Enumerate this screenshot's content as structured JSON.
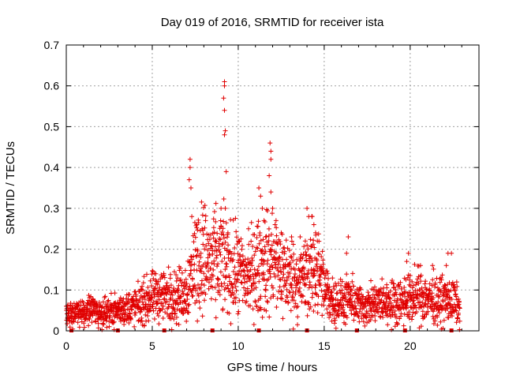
{
  "chart_data": {
    "type": "scatter",
    "title": "Day 019 of 2016, SRMTID for receiver ista",
    "xlabel": "GPS time / hours",
    "ylabel": "SRMTID / TECUs",
    "xlim": [
      0,
      24
    ],
    "ylim": [
      0,
      0.7
    ],
    "xticks": [
      0,
      5,
      10,
      15,
      20
    ],
    "xtick_labels": [
      "0",
      "5",
      "10",
      "15",
      "20"
    ],
    "yticks": [
      0,
      0.1,
      0.2,
      0.3,
      0.4,
      0.5,
      0.6,
      0.7
    ],
    "ytick_labels": [
      "0",
      "0.1",
      "0.2",
      "0.3",
      "0.4",
      "0.5",
      "0.6",
      "0.7"
    ],
    "grid": true,
    "marker": "+",
    "color": "#e00000",
    "series": [
      {
        "name": "SRMTID",
        "profile": [
          [
            0.0,
            0.04
          ],
          [
            0.5,
            0.045
          ],
          [
            1.0,
            0.045
          ],
          [
            1.5,
            0.05
          ],
          [
            2.0,
            0.045
          ],
          [
            2.5,
            0.05
          ],
          [
            3.0,
            0.05
          ],
          [
            3.5,
            0.055
          ],
          [
            4.0,
            0.06
          ],
          [
            4.5,
            0.07
          ],
          [
            5.0,
            0.08
          ],
          [
            5.5,
            0.09
          ],
          [
            6.0,
            0.085
          ],
          [
            6.5,
            0.085
          ],
          [
            7.0,
            0.1
          ],
          [
            7.5,
            0.17
          ],
          [
            8.0,
            0.18
          ],
          [
            8.5,
            0.16
          ],
          [
            9.0,
            0.17
          ],
          [
            9.5,
            0.15
          ],
          [
            10.0,
            0.14
          ],
          [
            10.5,
            0.13
          ],
          [
            11.0,
            0.15
          ],
          [
            11.5,
            0.16
          ],
          [
            12.0,
            0.17
          ],
          [
            12.5,
            0.15
          ],
          [
            13.0,
            0.13
          ],
          [
            13.5,
            0.12
          ],
          [
            14.0,
            0.13
          ],
          [
            14.5,
            0.16
          ],
          [
            15.0,
            0.1
          ],
          [
            15.5,
            0.075
          ],
          [
            16.0,
            0.07
          ],
          [
            16.5,
            0.075
          ],
          [
            17.0,
            0.065
          ],
          [
            17.5,
            0.06
          ],
          [
            18.0,
            0.065
          ],
          [
            18.5,
            0.07
          ],
          [
            19.0,
            0.07
          ],
          [
            19.5,
            0.075
          ],
          [
            20.0,
            0.08
          ],
          [
            20.5,
            0.085
          ],
          [
            21.0,
            0.08
          ],
          [
            21.5,
            0.075
          ],
          [
            22.0,
            0.075
          ],
          [
            22.5,
            0.07
          ],
          [
            22.9,
            0.06
          ]
        ],
        "spikes": [
          [
            7.2,
            0.42
          ],
          [
            7.2,
            0.4
          ],
          [
            7.15,
            0.37
          ],
          [
            7.25,
            0.35
          ],
          [
            7.3,
            0.28
          ],
          [
            7.6,
            0.26
          ],
          [
            7.9,
            0.25
          ],
          [
            8.1,
            0.27
          ],
          [
            8.7,
            0.22
          ],
          [
            9.0,
            0.3
          ],
          [
            9.2,
            0.61
          ],
          [
            9.2,
            0.6
          ],
          [
            9.15,
            0.57
          ],
          [
            9.2,
            0.54
          ],
          [
            9.25,
            0.49
          ],
          [
            9.2,
            0.48
          ],
          [
            9.3,
            0.39
          ],
          [
            9.25,
            0.3
          ],
          [
            9.4,
            0.24
          ],
          [
            10.0,
            0.22
          ],
          [
            10.6,
            0.25
          ],
          [
            11.2,
            0.35
          ],
          [
            11.3,
            0.33
          ],
          [
            11.4,
            0.3
          ],
          [
            11.5,
            0.27
          ],
          [
            11.6,
            0.23
          ],
          [
            11.85,
            0.46
          ],
          [
            11.9,
            0.44
          ],
          [
            11.9,
            0.42
          ],
          [
            11.8,
            0.38
          ],
          [
            11.9,
            0.34
          ],
          [
            12.0,
            0.3
          ],
          [
            12.2,
            0.27
          ],
          [
            12.5,
            0.24
          ],
          [
            13.1,
            0.23
          ],
          [
            13.6,
            0.23
          ],
          [
            13.9,
            0.22
          ],
          [
            14.0,
            0.3
          ],
          [
            14.1,
            0.28
          ],
          [
            14.3,
            0.28
          ],
          [
            14.4,
            0.26
          ],
          [
            14.5,
            0.24
          ],
          [
            14.6,
            0.22
          ],
          [
            16.4,
            0.23
          ],
          [
            16.3,
            0.19
          ],
          [
            19.9,
            0.19
          ],
          [
            19.8,
            0.17
          ],
          [
            20.6,
            0.16
          ],
          [
            21.3,
            0.16
          ],
          [
            22.2,
            0.19
          ],
          [
            22.4,
            0.19
          ],
          [
            22.1,
            0.16
          ]
        ]
      }
    ],
    "baseline_markers_x": [
      0.3,
      3.0,
      5.7,
      8.5,
      11.2,
      14.0,
      16.9,
      19.7,
      22.4
    ]
  }
}
